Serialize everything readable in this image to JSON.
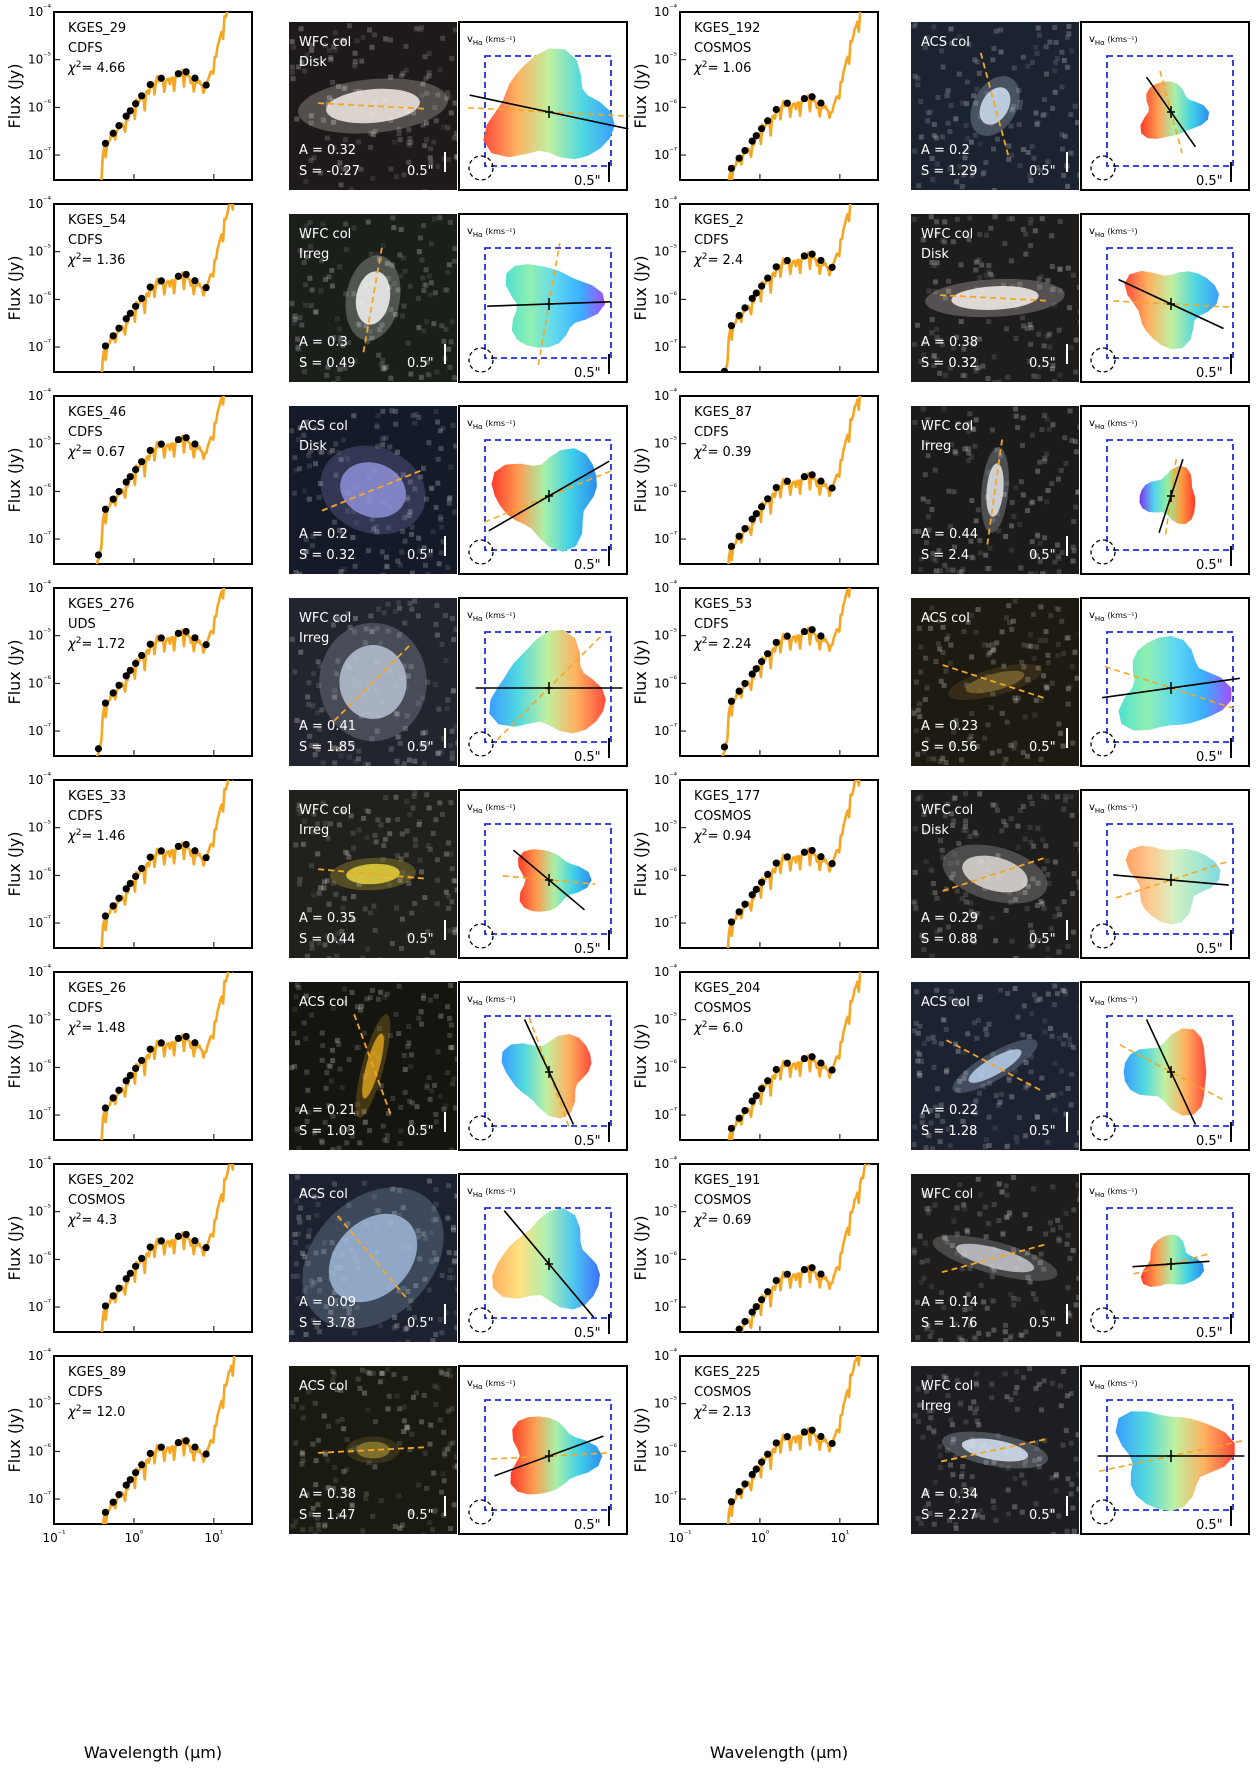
{
  "figure": {
    "ylabel": "Flux (Jy)",
    "xlabel": "Wavelength (μm)",
    "scale_bar_label": "0.5\"",
    "vel_label": "v",
    "vel_sub": "Hα",
    "vel_unit": "(kms⁻¹)",
    "x_ticks": [
      "10⁻¹",
      "10⁰",
      "10¹"
    ],
    "y_ticks": [
      "10⁻⁴",
      "10⁻⁵",
      "10⁻⁶",
      "10⁻⁷"
    ]
  },
  "colors": {
    "sed_model": "#f5a623",
    "photometry": "#000000",
    "frame_dash": "#1f2ee0",
    "pa_morph": "#f5a623",
    "pa_kin": "#000000"
  },
  "chart_data": {
    "type": "scatter",
    "x_scale": "log",
    "y_scale": "log",
    "xlim": [
      0.1,
      30
    ],
    "ylim": [
      3e-08,
      0.0001
    ],
    "galaxies": [
      {
        "id": "KGES_29",
        "field": "CDFS",
        "chi2": "4.66",
        "image": "WFC col",
        "morph": "Disk",
        "A": "0.32",
        "S": "-0.27",
        "bg": "#1f1a1a",
        "blob": "#f2ebe4",
        "blob_rx": 0.28,
        "blob_ry": 0.1,
        "blob_angle": -5,
        "pa_morph": -3,
        "pa_kin": -12,
        "amp": 5e-06,
        "vmap": "disk",
        "vmap_r": 0.42,
        "vmap_angle": -12
      },
      {
        "id": "KGES_192",
        "field": "COSMOS",
        "chi2": "1.06",
        "image": "ACS col",
        "morph": "",
        "A": "0.2",
        "S": "1.29",
        "bg": "#1c2330",
        "blob": "#cfe0f2",
        "blob_rx": 0.12,
        "blob_ry": 0.08,
        "blob_angle": -60,
        "pa_morph": -75,
        "pa_kin": -55,
        "amp": 1.5e-06,
        "vmap": "left",
        "vmap_r": 0.22,
        "vmap_angle": 0
      },
      {
        "id": "KGES_54",
        "field": "CDFS",
        "chi2": "1.36",
        "image": "WFC col",
        "morph": "Irreg",
        "A": "0.3",
        "S": "0.49",
        "bg": "#1a1f1a",
        "blob": "#f4f6f4",
        "blob_rx": 0.1,
        "blob_ry": 0.16,
        "blob_angle": 10,
        "pa_morph": 80,
        "pa_kin": 2,
        "amp": 3e-06,
        "vmap": "top",
        "vmap_r": 0.32,
        "vmap_angle": 0
      },
      {
        "id": "KGES_2",
        "field": "CDFS",
        "chi2": "2.4",
        "image": "WFC col",
        "morph": "Disk",
        "A": "0.38",
        "S": "0.32",
        "bg": "#1e1d1c",
        "blob": "#f6f0ea",
        "blob_rx": 0.26,
        "blob_ry": 0.07,
        "blob_angle": -3,
        "pa_morph": -3,
        "pa_kin": -25,
        "amp": 8e-06,
        "vmap": "disk",
        "vmap_r": 0.3,
        "vmap_angle": -15
      },
      {
        "id": "KGES_46",
        "field": "CDFS",
        "chi2": "0.67",
        "image": "ACS col",
        "morph": "Disk",
        "A": "0.2",
        "S": "0.32",
        "bg": "#151a28",
        "blob": "#8f8fd8",
        "blob_rx": 0.2,
        "blob_ry": 0.16,
        "blob_angle": 20,
        "pa_morph": 22,
        "pa_kin": 30,
        "amp": 1.2e-05,
        "vmap": "left",
        "vmap_r": 0.36,
        "vmap_angle": 0
      },
      {
        "id": "KGES_87",
        "field": "CDFS",
        "chi2": "0.39",
        "image": "WFC col",
        "morph": "Irreg",
        "A": "0.44",
        "S": "2.4",
        "bg": "#1b1b1b",
        "blob": "#e4e6ea",
        "blob_rx": 0.05,
        "blob_ry": 0.16,
        "blob_angle": 5,
        "pa_morph": 82,
        "pa_kin": 72,
        "amp": 2e-06,
        "vmap": "purpletop",
        "vmap_r": 0.2,
        "vmap_angle": 0
      },
      {
        "id": "KGES_276",
        "field": "UDS",
        "chi2": "1.72",
        "image": "WFC col",
        "morph": "Irreg",
        "A": "0.41",
        "S": "1.85",
        "bg": "#22252d",
        "blob": "#b9c2d2",
        "blob_rx": 0.2,
        "blob_ry": 0.22,
        "blob_angle": 0,
        "pa_morph": 45,
        "pa_kin": 0,
        "amp": 1.1e-05,
        "vmap": "right",
        "vmap_r": 0.38,
        "vmap_angle": 0
      },
      {
        "id": "KGES_53",
        "field": "CDFS",
        "chi2": "2.24",
        "image": "ACS col",
        "morph": "",
        "A": "0.23",
        "S": "0.56",
        "bg": "#1d1a12",
        "blob": "#7a6530",
        "blob_rx": 0.18,
        "blob_ry": 0.05,
        "blob_angle": -15,
        "pa_morph": -18,
        "pa_kin": 8,
        "amp": 1.2e-05,
        "vmap": "top",
        "vmap_r": 0.36,
        "vmap_angle": 0
      },
      {
        "id": "KGES_33",
        "field": "CDFS",
        "chi2": "1.46",
        "image": "WFC col",
        "morph": "Irreg",
        "A": "0.35",
        "S": "0.44",
        "bg": "#20201c",
        "blob": "#e8d440",
        "blob_rx": 0.16,
        "blob_ry": 0.06,
        "blob_angle": -3,
        "pa_morph": -5,
        "pa_kin": -40,
        "amp": 4e-06,
        "vmap": "left",
        "vmap_r": 0.24,
        "vmap_angle": 0
      },
      {
        "id": "KGES_177",
        "field": "COSMOS",
        "chi2": "0.94",
        "image": "WFC col",
        "morph": "Disk",
        "A": "0.29",
        "S": "0.88",
        "bg": "#1e1d1c",
        "blob": "#dedad6",
        "blob_rx": 0.2,
        "blob_ry": 0.1,
        "blob_angle": 15,
        "pa_morph": 18,
        "pa_kin": -5,
        "amp": 3e-06,
        "vmap": "pale",
        "vmap_r": 0.3,
        "vmap_angle": 0
      },
      {
        "id": "KGES_26",
        "field": "CDFS",
        "chi2": "1.48",
        "image": "ACS col",
        "morph": "",
        "A": "0.21",
        "S": "1.03",
        "bg": "#15150f",
        "blob": "#d9a020",
        "blob_rx": 0.04,
        "blob_ry": 0.2,
        "blob_angle": 15,
        "pa_morph": -70,
        "pa_kin": -65,
        "amp": 4e-06,
        "vmap": "right",
        "vmap_r": 0.3,
        "vmap_angle": 0
      },
      {
        "id": "KGES_204",
        "field": "COSMOS",
        "chi2": "6.0",
        "image": "ACS col",
        "morph": "",
        "A": "0.22",
        "S": "1.28",
        "bg": "#1c2230",
        "blob": "#b8d0ec",
        "blob_rx": 0.18,
        "blob_ry": 0.05,
        "blob_angle": -30,
        "pa_morph": -28,
        "pa_kin": -65,
        "amp": 1.5e-06,
        "vmap": "right",
        "vmap_r": 0.3,
        "vmap_angle": 0
      },
      {
        "id": "KGES_202",
        "field": "COSMOS",
        "chi2": "4.3",
        "image": "ACS col",
        "morph": "",
        "A": "0.09",
        "S": "3.78",
        "bg": "#1c2230",
        "blob": "#9fbad8",
        "blob_rx": 0.3,
        "blob_ry": 0.22,
        "blob_angle": -45,
        "pa_morph": -50,
        "pa_kin": -50,
        "amp": 3e-06,
        "vmap": "diag",
        "vmap_r": 0.36,
        "vmap_angle": 0
      },
      {
        "id": "KGES_191",
        "field": "COSMOS",
        "chi2": "0.69",
        "image": "WFC col",
        "morph": "",
        "A": "0.14",
        "S": "1.76",
        "bg": "#1e1d1c",
        "blob": "#c6c7cc",
        "blob_rx": 0.24,
        "blob_ry": 0.06,
        "blob_angle": 15,
        "pa_morph": 15,
        "pa_kin": 4,
        "amp": 6e-07,
        "vmap": "left",
        "vmap_r": 0.2,
        "vmap_angle": 0
      },
      {
        "id": "KGES_89",
        "field": "CDFS",
        "chi2": "12.0",
        "image": "ACS col",
        "morph": "",
        "A": "0.38",
        "S": "1.47",
        "bg": "#1a1a12",
        "blob": "#8c7a30",
        "blob_rx": 0.1,
        "blob_ry": 0.05,
        "blob_angle": 0,
        "pa_morph": 3,
        "pa_kin": 20,
        "amp": 1.5e-06,
        "vmap": "left",
        "vmap_r": 0.3,
        "vmap_angle": 0
      },
      {
        "id": "KGES_225",
        "field": "COSMOS",
        "chi2": "2.13",
        "image": "WFC col",
        "morph": "Irreg",
        "A": "0.34",
        "S": "2.27",
        "bg": "#1d1e22",
        "blob": "#d8e4f4",
        "blob_rx": 0.2,
        "blob_ry": 0.06,
        "blob_angle": 10,
        "pa_morph": 12,
        "pa_kin": 0,
        "amp": 2.5e-06,
        "vmap": "right",
        "vmap_r": 0.38,
        "vmap_angle": 0
      }
    ]
  }
}
